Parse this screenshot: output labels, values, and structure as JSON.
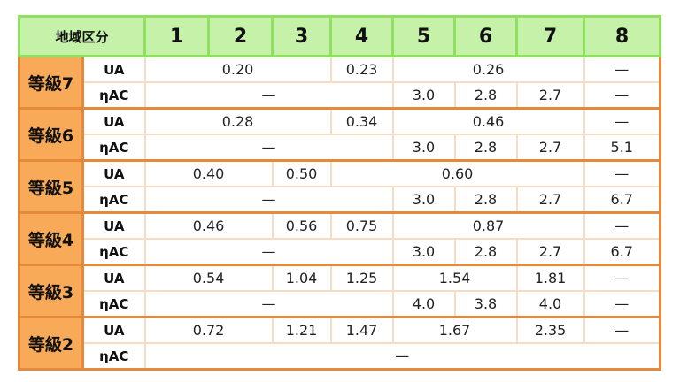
{
  "header": {
    "area_label": "地域区分",
    "regions": [
      "1",
      "2",
      "3",
      "4",
      "5",
      "6",
      "7",
      "8"
    ]
  },
  "metrics": {
    "ua": "UA",
    "eta": "ηAC"
  },
  "grades": [
    {
      "label": "等級7",
      "ua": [
        {
          "v": "0.20",
          "span": 3
        },
        {
          "v": "0.23",
          "span": 1
        },
        {
          "v": "0.26",
          "span": 3
        },
        {
          "v": "—",
          "span": 1
        }
      ],
      "eta": [
        {
          "v": "—",
          "span": 4
        },
        {
          "v": "3.0",
          "span": 1
        },
        {
          "v": "2.8",
          "span": 1
        },
        {
          "v": "2.7",
          "span": 1
        },
        {
          "v": "—",
          "span": 1
        }
      ]
    },
    {
      "label": "等級6",
      "ua": [
        {
          "v": "0.28",
          "span": 3
        },
        {
          "v": "0.34",
          "span": 1
        },
        {
          "v": "0.46",
          "span": 3
        },
        {
          "v": "—",
          "span": 1
        }
      ],
      "eta": [
        {
          "v": "—",
          "span": 4
        },
        {
          "v": "3.0",
          "span": 1
        },
        {
          "v": "2.8",
          "span": 1
        },
        {
          "v": "2.7",
          "span": 1
        },
        {
          "v": "5.1",
          "span": 1
        }
      ]
    },
    {
      "label": "等級5",
      "ua": [
        {
          "v": "0.40",
          "span": 2
        },
        {
          "v": "0.50",
          "span": 1
        },
        {
          "v": "0.60",
          "span": 4
        },
        {
          "v": "—",
          "span": 1
        }
      ],
      "eta": [
        {
          "v": "—",
          "span": 4
        },
        {
          "v": "3.0",
          "span": 1
        },
        {
          "v": "2.8",
          "span": 1
        },
        {
          "v": "2.7",
          "span": 1
        },
        {
          "v": "6.7",
          "span": 1
        }
      ]
    },
    {
      "label": "等級4",
      "ua": [
        {
          "v": "0.46",
          "span": 2
        },
        {
          "v": "0.56",
          "span": 1
        },
        {
          "v": "0.75",
          "span": 1
        },
        {
          "v": "0.87",
          "span": 3
        },
        {
          "v": "—",
          "span": 1
        }
      ],
      "eta": [
        {
          "v": "—",
          "span": 4
        },
        {
          "v": "3.0",
          "span": 1
        },
        {
          "v": "2.8",
          "span": 1
        },
        {
          "v": "2.7",
          "span": 1
        },
        {
          "v": "6.7",
          "span": 1
        }
      ]
    },
    {
      "label": "等級3",
      "ua": [
        {
          "v": "0.54",
          "span": 2
        },
        {
          "v": "1.04",
          "span": 1
        },
        {
          "v": "1.25",
          "span": 1
        },
        {
          "v": "1.54",
          "span": 2
        },
        {
          "v": "1.81",
          "span": 1
        },
        {
          "v": "—",
          "span": 1
        }
      ],
      "eta": [
        {
          "v": "—",
          "span": 4
        },
        {
          "v": "4.0",
          "span": 1
        },
        {
          "v": "3.8",
          "span": 1
        },
        {
          "v": "4.0",
          "span": 1
        },
        {
          "v": "—",
          "span": 1
        }
      ]
    },
    {
      "label": "等級2",
      "ua": [
        {
          "v": "0.72",
          "span": 2
        },
        {
          "v": "1.21",
          "span": 1
        },
        {
          "v": "1.47",
          "span": 1
        },
        {
          "v": "1.67",
          "span": 2
        },
        {
          "v": "2.35",
          "span": 1
        },
        {
          "v": "—",
          "span": 1
        }
      ],
      "eta": [
        {
          "v": "—",
          "span": 8
        }
      ]
    }
  ]
}
